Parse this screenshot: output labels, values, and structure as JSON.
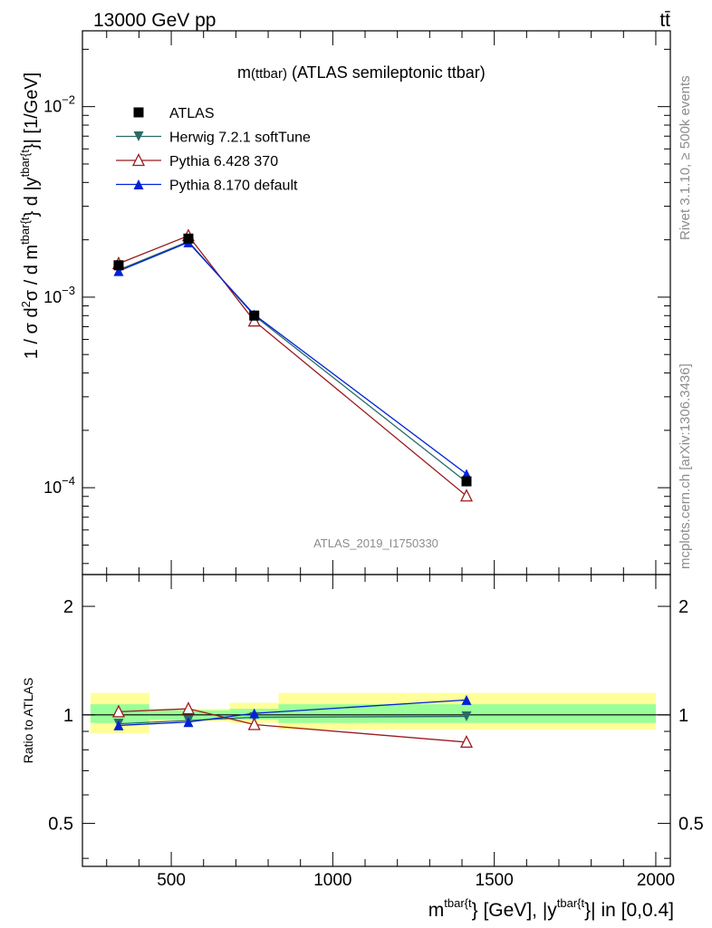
{
  "header": {
    "energy_label": "13000 GeV pp",
    "process_label": "tt̄"
  },
  "side_labels": {
    "rivet": "Rivet 3.1.10, ≥ 500k events",
    "mcplots": "mcplots.cern.ch [arXiv:1306.3436]"
  },
  "chart_data": [
    {
      "panel": "main",
      "type": "line",
      "title_main": "m",
      "title_sub": "(ttbar)",
      "title_rest": " (ATLAS semileptonic ttbar)",
      "analysis_id": "ATLAS_2019_I1750330",
      "yscale": "log",
      "ylim": [
        3.5e-05,
        0.025
      ],
      "xlim": [
        225,
        2045
      ],
      "ylabel_parts": [
        "1 / σ d",
        "2",
        "σ / d m",
        "tbar{t",
        "} d |y",
        "tbar{t",
        "}| [1/GeV]"
      ],
      "ytick_labels": [
        {
          "value": 0.0001,
          "base": "10",
          "exp": "−4"
        },
        {
          "value": 0.001,
          "base": "10",
          "exp": "−3"
        },
        {
          "value": 0.01,
          "base": "10",
          "exp": "−2"
        }
      ],
      "legend_position": "top-left",
      "x": [
        337,
        553,
        757,
        1414
      ],
      "series": [
        {
          "name": "ATLAS",
          "color": "#000000",
          "marker": "square",
          "values": [
            0.00147,
            0.00203,
            0.0008,
            0.000108
          ],
          "yerr": [
            4e-05,
            5e-05,
            2e-05,
            5e-06
          ]
        },
        {
          "name": "Herwig 7.2.1 softTune",
          "color": "#2a6b68",
          "marker": "triangle-down",
          "values": [
            0.00139,
            0.00196,
            0.0008,
            0.000107
          ]
        },
        {
          "name": "Pythia 6.428 370",
          "color": "#9b1b20",
          "marker": "triangle-open",
          "values": [
            0.0015,
            0.0021,
            0.00075,
            9.05e-05
          ]
        },
        {
          "name": "Pythia 8.170 default",
          "color": "#0022d6",
          "marker": "triangle-up",
          "values": [
            0.00137,
            0.00194,
            0.00081,
            0.000118
          ]
        }
      ]
    },
    {
      "panel": "ratio",
      "type": "line",
      "yscale": "log",
      "ylim": [
        0.38,
        2.45
      ],
      "xlim": [
        225,
        2045
      ],
      "ylabel": "Ratio to ATLAS",
      "xlabel_parts": [
        "m",
        "tbar{t",
        "} [GeV], |y",
        "tbar{t",
        "}| in [0,0.4]"
      ],
      "xtick_labels": [
        {
          "value": 500,
          "label": "500"
        },
        {
          "value": 1000,
          "label": "1000"
        },
        {
          "value": 1500,
          "label": "1500"
        },
        {
          "value": 2000,
          "label": "2000"
        }
      ],
      "ytick_labels": [
        {
          "value": 0.5,
          "label": "0.5"
        },
        {
          "value": 1,
          "label": "1"
        },
        {
          "value": 2,
          "label": "2"
        }
      ],
      "bands": [
        {
          "x_range": [
            250,
            432
          ],
          "inner": [
            0.95,
            1.07
          ],
          "outer": [
            0.89,
            1.15
          ]
        },
        {
          "x_range": [
            432,
            681
          ],
          "inner": [
            0.97,
            1.03
          ],
          "outer": [
            0.96,
            1.04
          ]
        },
        {
          "x_range": [
            681,
            832
          ],
          "inner": [
            0.97,
            1.04
          ],
          "outer": [
            0.95,
            1.08
          ]
        },
        {
          "x_range": [
            832,
            2000
          ],
          "inner": [
            0.95,
            1.07
          ],
          "outer": [
            0.91,
            1.15
          ]
        }
      ],
      "x": [
        337,
        553,
        757,
        1414
      ],
      "series": [
        {
          "name": "Herwig 7.2.1 softTune",
          "color": "#2a6b68",
          "marker": "triangle-down",
          "values": [
            0.945,
            0.965,
            0.985,
            0.99
          ]
        },
        {
          "name": "Pythia 6.428 370",
          "color": "#9b1b20",
          "marker": "triangle-open",
          "values": [
            1.02,
            1.04,
            0.94,
            0.84
          ]
        },
        {
          "name": "Pythia 8.170 default",
          "color": "#0022d6",
          "marker": "triangle-up",
          "values": [
            0.935,
            0.955,
            1.01,
            1.1
          ]
        }
      ]
    }
  ]
}
